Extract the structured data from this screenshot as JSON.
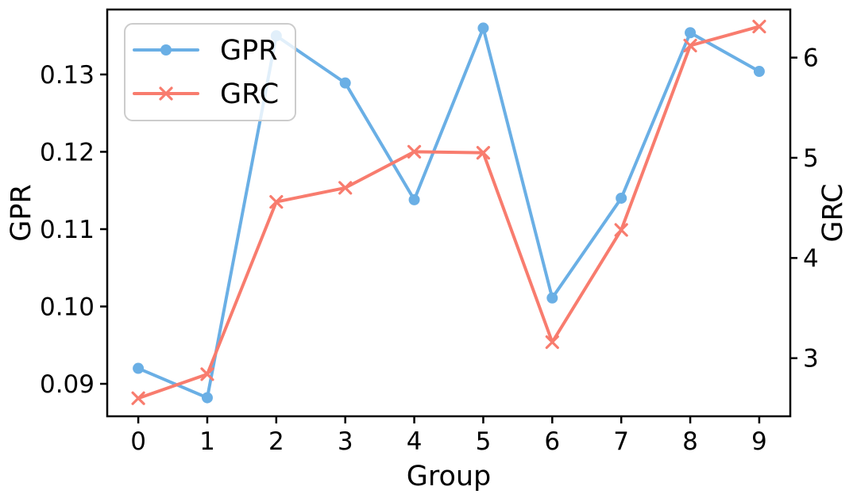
{
  "chart_data": {
    "type": "line",
    "title": "",
    "xlabel": "Group",
    "x": [
      0,
      1,
      2,
      3,
      4,
      5,
      6,
      7,
      8,
      9
    ],
    "xlim": [
      -0.45,
      9.45
    ],
    "x_tick_labels": [
      "0",
      "1",
      "2",
      "3",
      "4",
      "5",
      "6",
      "7",
      "8",
      "9"
    ],
    "series": [
      {
        "name": "GPR",
        "axis": "left",
        "marker": "circle",
        "color": "#6aafe5",
        "values": [
          0.092,
          0.0882,
          0.135,
          0.1289,
          0.1138,
          0.136,
          0.1011,
          0.114,
          0.1354,
          0.1304
        ]
      },
      {
        "name": "GRC",
        "axis": "right",
        "marker": "x",
        "color": "#f87c6e",
        "values": [
          2.6,
          2.84,
          4.56,
          4.7,
          5.06,
          5.05,
          3.16,
          4.28,
          6.12,
          6.31
        ]
      }
    ],
    "left_axis": {
      "label": "GPR",
      "ylim": [
        0.0858,
        0.1384
      ],
      "ticks": [
        0.09,
        0.1,
        0.11,
        0.12,
        0.13
      ],
      "tick_labels": [
        "0.09",
        "0.10",
        "0.11",
        "0.12",
        "0.13"
      ]
    },
    "right_axis": {
      "label": "GRC",
      "ylim": [
        2.42,
        6.48
      ],
      "ticks": [
        3,
        4,
        5,
        6
      ],
      "tick_labels": [
        "3",
        "4",
        "5",
        "6"
      ]
    },
    "legend": {
      "position": "upper-left",
      "entries": [
        "GPR",
        "GRC"
      ]
    },
    "grid": false,
    "colors": {
      "background": "#ffffff",
      "spine": "#000000",
      "text": "#000000",
      "legend_border": "#cccccc",
      "legend_fill_rgba": "rgba(255,255,255,0.8)"
    }
  }
}
